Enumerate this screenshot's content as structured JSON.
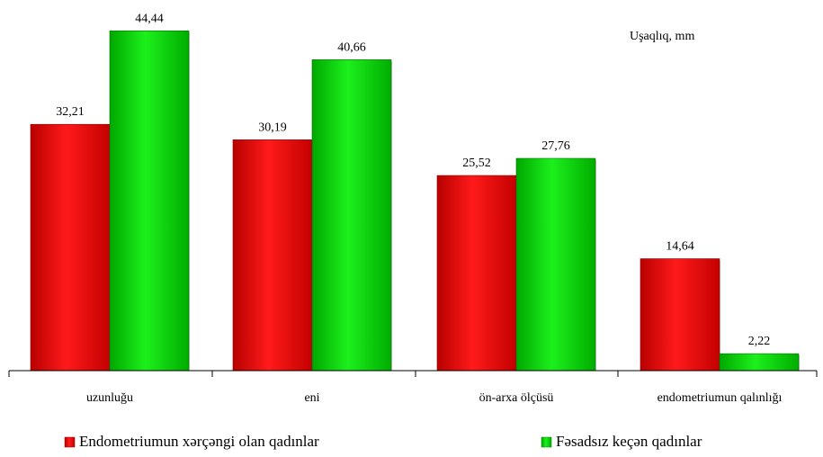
{
  "chart_data": {
    "type": "bar",
    "title": "",
    "unit_label": "Uşaqlıq, mm",
    "categories": [
      "uzunluğu",
      "eni",
      "ön-arxa ölçüsü",
      "endometriumun qalınlığı"
    ],
    "series": [
      {
        "name": "Endometriumun xərçəngi olan qadınlar",
        "color": "#e00000",
        "values": [
          32.21,
          30.19,
          25.52,
          14.64
        ],
        "labels": [
          "32,21",
          "30,19",
          "25,52",
          "14,64"
        ]
      },
      {
        "name": "Fəsadsız keçən qadınlar",
        "color": "#00cc00",
        "values": [
          44.44,
          40.66,
          27.76,
          2.22
        ],
        "labels": [
          "44,44",
          "40,66",
          "27,76",
          "2,22"
        ]
      }
    ],
    "ylim": [
      0,
      50
    ],
    "grid": false,
    "legend_position": "bottom"
  }
}
